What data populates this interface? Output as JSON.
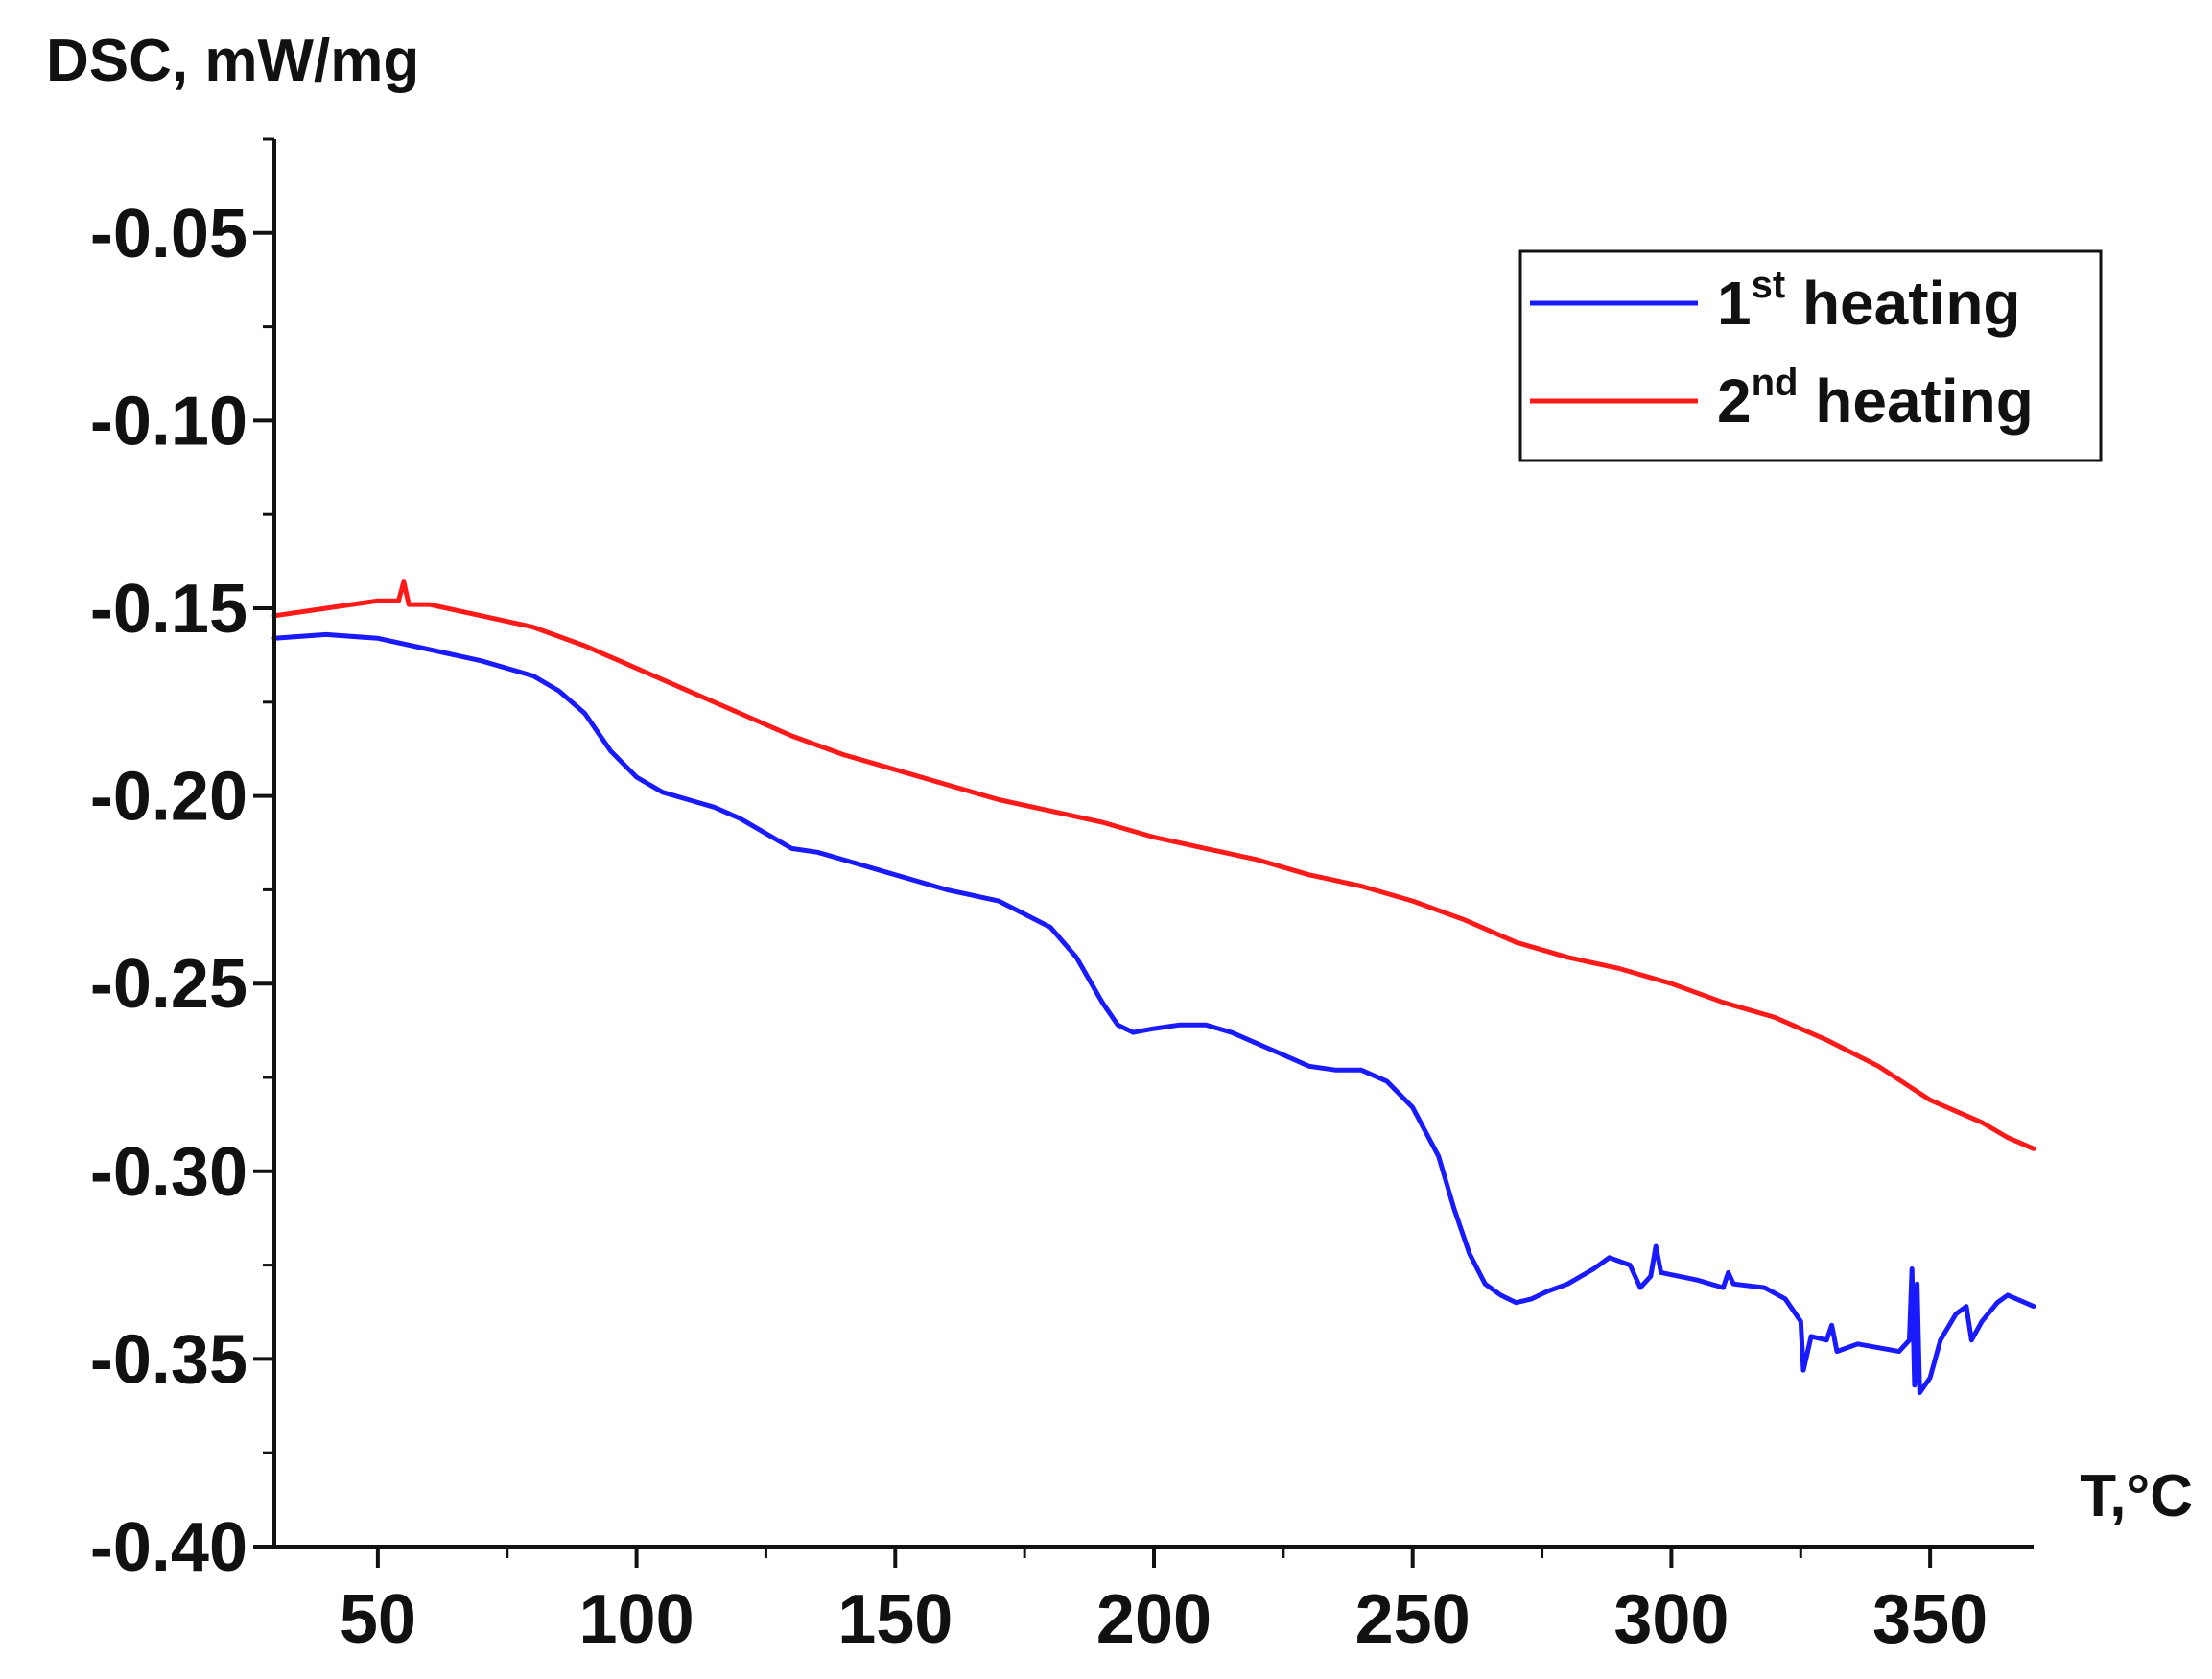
{
  "chart_data": {
    "type": "line",
    "title": "",
    "ylabel": "DSC, mW/mg",
    "xlabel": "T,°C",
    "xlim": [
      30,
      370
    ],
    "ylim": [
      -0.4,
      -0.025
    ],
    "xticks": [
      50,
      100,
      150,
      200,
      250,
      300,
      350
    ],
    "yticks": [
      -0.05,
      -0.1,
      -0.15,
      -0.2,
      -0.25,
      -0.3,
      -0.35,
      -0.4
    ],
    "xtick_labels": [
      "50",
      "100",
      "150",
      "200",
      "250",
      "300",
      "350"
    ],
    "ytick_labels": [
      "-0.05",
      "-0.10",
      "-0.15",
      "-0.20",
      "-0.25",
      "-0.30",
      "-0.35",
      "-0.40"
    ],
    "grid": false,
    "legend_position": "top-right",
    "series": [
      {
        "name": "1st heating",
        "legend_main": "1",
        "legend_sup": "st",
        "legend_rest": " heating",
        "color": "#1a1aff",
        "x": [
          30,
          40,
          50,
          60,
          70,
          80,
          85,
          90,
          95,
          100,
          105,
          110,
          115,
          120,
          125,
          130,
          135,
          140,
          150,
          160,
          170,
          180,
          185,
          190,
          193,
          196,
          200,
          205,
          210,
          215,
          220,
          225,
          230,
          235,
          240,
          245,
          250,
          255,
          258,
          261,
          264,
          267,
          270,
          273,
          276,
          280,
          285,
          288,
          292,
          294,
          296,
          297,
          298,
          305,
          310,
          311,
          312,
          318,
          322,
          325,
          325.5,
          327,
          330,
          331,
          332,
          336,
          340,
          344,
          346,
          346.5,
          347,
          347.5,
          348,
          350,
          352,
          355,
          357,
          358,
          360,
          363,
          365,
          370
        ],
        "y": [
          -0.158,
          -0.157,
          -0.158,
          -0.161,
          -0.164,
          -0.168,
          -0.172,
          -0.178,
          -0.188,
          -0.195,
          -0.199,
          -0.201,
          -0.203,
          -0.206,
          -0.21,
          -0.214,
          -0.215,
          -0.217,
          -0.221,
          -0.225,
          -0.228,
          -0.235,
          -0.243,
          -0.255,
          -0.261,
          -0.263,
          -0.262,
          -0.261,
          -0.261,
          -0.263,
          -0.266,
          -0.269,
          -0.272,
          -0.273,
          -0.273,
          -0.276,
          -0.283,
          -0.296,
          -0.31,
          -0.322,
          -0.33,
          -0.333,
          -0.335,
          -0.334,
          -0.332,
          -0.33,
          -0.326,
          -0.323,
          -0.325,
          -0.331,
          -0.328,
          -0.32,
          -0.327,
          -0.329,
          -0.331,
          -0.327,
          -0.33,
          -0.331,
          -0.334,
          -0.34,
          -0.353,
          -0.344,
          -0.345,
          -0.341,
          -0.348,
          -0.346,
          -0.347,
          -0.348,
          -0.345,
          -0.326,
          -0.357,
          -0.33,
          -0.359,
          -0.355,
          -0.345,
          -0.338,
          -0.336,
          -0.345,
          -0.34,
          -0.335,
          -0.333,
          -0.336
        ]
      },
      {
        "name": "2nd heating",
        "legend_main": "2",
        "legend_sup": "nd",
        "legend_rest": " heating",
        "color": "#ff1a1a",
        "x": [
          30,
          40,
          50,
          54,
          55,
          56,
          60,
          70,
          80,
          90,
          100,
          110,
          120,
          130,
          140,
          150,
          160,
          170,
          180,
          190,
          200,
          210,
          220,
          230,
          240,
          250,
          260,
          270,
          280,
          290,
          300,
          310,
          320,
          330,
          340,
          350,
          360,
          365,
          370
        ],
        "y": [
          -0.152,
          -0.15,
          -0.148,
          -0.148,
          -0.143,
          -0.149,
          -0.149,
          -0.152,
          -0.155,
          -0.16,
          -0.166,
          -0.172,
          -0.178,
          -0.184,
          -0.189,
          -0.193,
          -0.197,
          -0.201,
          -0.204,
          -0.207,
          -0.211,
          -0.214,
          -0.217,
          -0.221,
          -0.224,
          -0.228,
          -0.233,
          -0.239,
          -0.243,
          -0.246,
          -0.25,
          -0.255,
          -0.259,
          -0.265,
          -0.272,
          -0.281,
          -0.287,
          -0.291,
          -0.294
        ]
      }
    ]
  }
}
